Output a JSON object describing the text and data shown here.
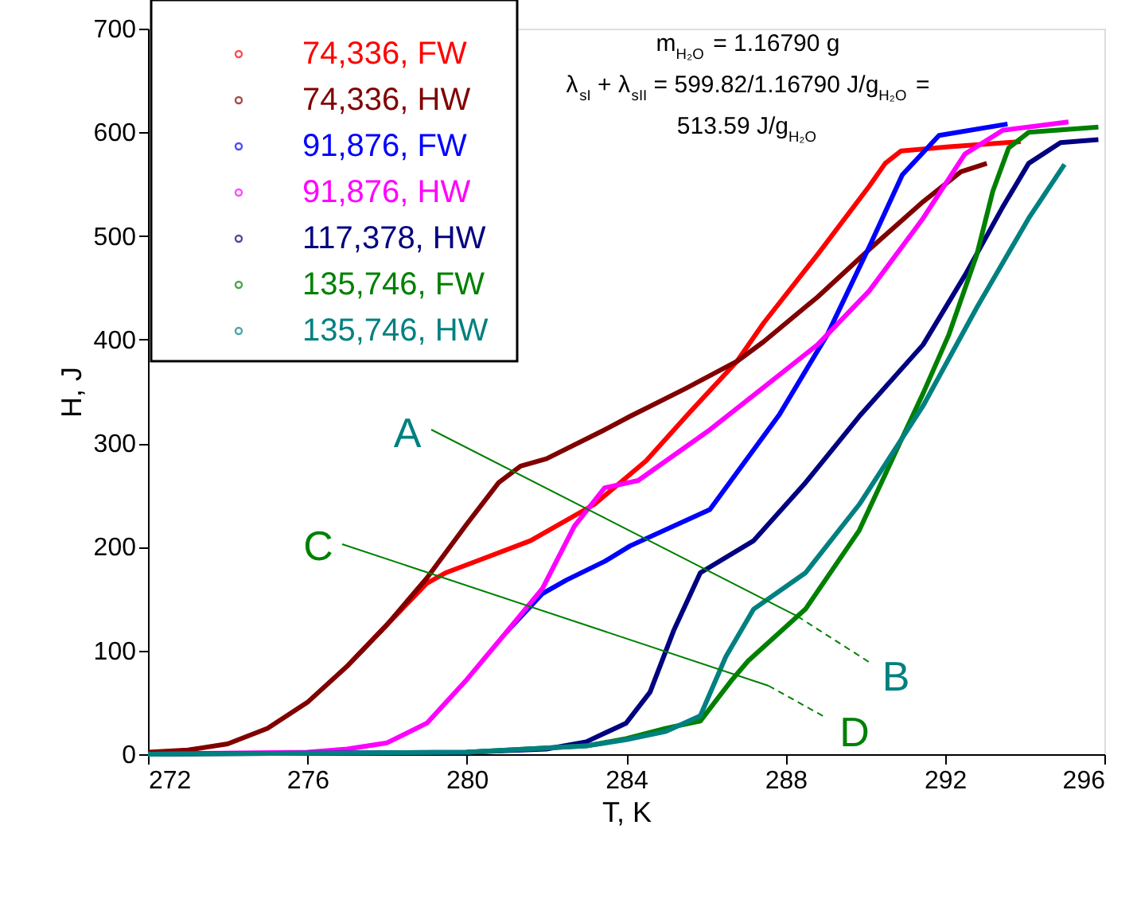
{
  "chart_data": {
    "type": "line",
    "xlabel": "T, K",
    "ylabel": "H, J",
    "xlim": [
      272,
      296
    ],
    "xticks": [
      272,
      276,
      280,
      284,
      288,
      292,
      296
    ],
    "ylim": [
      0,
      700
    ],
    "yticks": [
      0,
      100,
      200,
      300,
      400,
      500,
      600,
      700
    ],
    "grid": false,
    "legend": "top left",
    "line_style": "solid",
    "series": [
      {
        "name": "74,336, FW",
        "color": "#ff0000",
        "x": [
          277,
          278,
          279,
          279.47,
          280.5,
          281.6,
          283.2,
          284.5,
          285.6,
          286.78,
          287.45,
          288.8,
          290.1,
          290.5,
          290.9,
          292.1,
          293.9
        ],
        "values": [
          85,
          125,
          165,
          175,
          190,
          206,
          241,
          283,
          330,
          379,
          416,
          482,
          548,
          570,
          582,
          586,
          591
        ]
      },
      {
        "name": "74,336, HW",
        "color": "#800000",
        "x": [
          272,
          273,
          274,
          275,
          276,
          277,
          278,
          279,
          280,
          280.8,
          281.35,
          282,
          283.46,
          284.1,
          285.5,
          286.78,
          287.45,
          288.8,
          290.1,
          291.45,
          292.4,
          293.05
        ],
        "values": [
          2,
          4,
          10,
          25,
          50,
          85,
          125,
          170,
          222,
          262,
          278,
          285,
          313,
          326,
          353,
          379,
          398,
          441,
          487,
          533,
          562,
          570
        ]
      },
      {
        "name": "91,876, FW",
        "color": "#0000ff",
        "x": [
          281,
          281.9,
          282.5,
          283.46,
          284.1,
          286.1,
          287.85,
          289.05,
          290.13,
          290.93,
          291.85,
          293.57
        ],
        "values": [
          118,
          155,
          168,
          186,
          201,
          236,
          328,
          405,
          492,
          559,
          597,
          608
        ]
      },
      {
        "name": "91,876, HW",
        "color": "#ff00ff",
        "x": [
          272,
          276,
          277,
          278,
          279,
          280,
          281,
          281.9,
          282.7,
          283.46,
          284.3,
          286.1,
          287.45,
          288.8,
          290.1,
          291.45,
          292.5,
          293.45,
          295.1
        ],
        "values": [
          0,
          2,
          5,
          11,
          30,
          72,
          118,
          160,
          220,
          257,
          264,
          313,
          354,
          395,
          447,
          517,
          579,
          602,
          610
        ]
      },
      {
        "name": "117,378, HW",
        "color": "#000080",
        "x": [
          272,
          276,
          280,
          282,
          283,
          284,
          284.6,
          285.2,
          285.86,
          287.2,
          288.5,
          289.85,
          291.45,
          292.5,
          293.45,
          294.1,
          294.9,
          295.85
        ],
        "values": [
          0,
          1,
          2,
          5,
          12,
          30,
          60,
          120,
          175,
          206,
          262,
          326,
          395,
          462,
          528,
          570,
          590,
          593
        ]
      },
      {
        "name": "135,746, FW",
        "color": "#008000",
        "x": [
          280,
          283,
          284,
          285,
          285.86,
          286.66,
          287.06,
          288.5,
          289.85,
          290.9,
          291.45,
          292.1,
          292.8,
          293.2,
          293.6,
          294.1,
          295.85
        ],
        "values": [
          2,
          8,
          15,
          25,
          32,
          72,
          90,
          140,
          216,
          303,
          348,
          405,
          482,
          543,
          585,
          600,
          605
        ]
      },
      {
        "name": "135,746, HW",
        "color": "#008080",
        "x": [
          272,
          276,
          280,
          283,
          284,
          285,
          285.86,
          286.5,
          287.2,
          288.5,
          289.85,
          291.45,
          292.8,
          294.1,
          295.0
        ],
        "values": [
          0,
          1,
          2,
          8,
          14,
          22,
          37,
          94,
          140,
          175,
          241,
          336,
          431,
          517,
          569
        ]
      }
    ],
    "annotations": [
      "A",
      {
        "text": "B",
        "x": 288.3,
        "y": 133
      },
      "C",
      "D",
      "m$_{H₂O}$ = 1.16790 g",
      "λ$_{sI}$ + λ$_{sII}$ = 599.82/1.16790 J/g$_{H₂O}$ =",
      "513.59 J/g$_{H₂O}$"
    ]
  }
}
